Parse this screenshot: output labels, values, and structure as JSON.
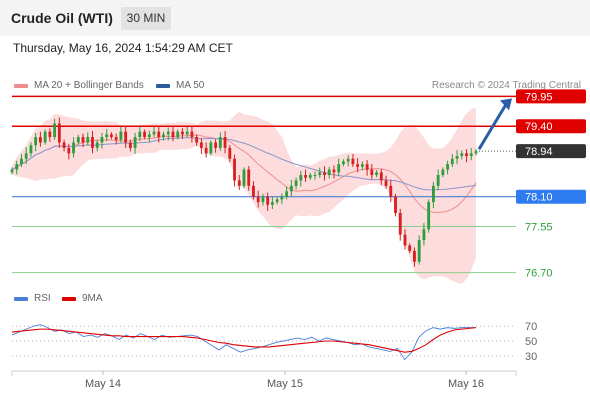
{
  "header": {
    "title": "Crude Oil (WTI)",
    "timeframe": "30 MIN"
  },
  "timestamp": "Thursday, May 16, 2024 1:54:29 AM CET",
  "legend": {
    "ma20": {
      "label": "MA 20 + Bollinger Bands",
      "color": "#f08c8c"
    },
    "ma50": {
      "label": "MA 50",
      "color": "#2e5b9e"
    }
  },
  "copyright": "Research © 2024 Trading Central",
  "rsi_legend": {
    "rsi": {
      "label": "RSI",
      "color": "#4a7fd6"
    },
    "ma9": {
      "label": "9MA",
      "color": "#e00000"
    }
  },
  "chart_data": [
    {
      "type": "candlestick",
      "ylim": [
        76.6,
        80.05
      ],
      "x_labels": [
        "May 14",
        "May 15",
        "May 16"
      ],
      "levels": [
        {
          "value": 79.95,
          "label": "79.95",
          "kind": "resistance"
        },
        {
          "value": 79.4,
          "label": "79.40",
          "kind": "resistance"
        },
        {
          "value": 78.94,
          "label": "78.94",
          "kind": "current"
        },
        {
          "value": 78.1,
          "label": "78.10",
          "kind": "pivot"
        },
        {
          "value": 77.55,
          "label": "77.55",
          "kind": "support"
        },
        {
          "value": 76.7,
          "label": "76.70",
          "kind": "support"
        }
      ],
      "colors": {
        "up": "#2e9e3c",
        "down": "#d92020",
        "band": "#fbd0d0",
        "ma20": "#f08c8c",
        "ma50": "#8a95c9"
      },
      "close_series": [
        78.6,
        78.7,
        78.8,
        78.9,
        79.05,
        79.2,
        79.1,
        79.3,
        79.2,
        79.45,
        79.1,
        79.0,
        78.9,
        79.1,
        79.2,
        79.1,
        79.2,
        79.0,
        79.1,
        79.2,
        79.25,
        79.2,
        79.15,
        79.3,
        79.1,
        79.0,
        79.2,
        79.3,
        79.2,
        79.25,
        79.3,
        79.2,
        79.25,
        79.3,
        79.2,
        79.3,
        79.25,
        79.3,
        79.2,
        79.1,
        79.0,
        78.9,
        79.1,
        79.0,
        79.2,
        79.0,
        78.8,
        78.4,
        78.3,
        78.6,
        78.3,
        78.1,
        78.0,
        78.1,
        77.95,
        78.0,
        78.05,
        78.1,
        78.2,
        78.3,
        78.4,
        78.5,
        78.45,
        78.5,
        78.5,
        78.55,
        78.5,
        78.6,
        78.55,
        78.7,
        78.75,
        78.8,
        78.7,
        78.65,
        78.7,
        78.6,
        78.5,
        78.55,
        78.4,
        78.3,
        78.1,
        77.8,
        77.4,
        77.2,
        77.1,
        76.9,
        77.3,
        77.5,
        78.0,
        78.3,
        78.5,
        78.6,
        78.7,
        78.8,
        78.85,
        78.9,
        78.85,
        78.9,
        78.94
      ]
    },
    {
      "type": "line",
      "title": "RSI",
      "ylim": [
        15,
        85
      ],
      "y_ticks": [
        70,
        50,
        30
      ],
      "series": [
        {
          "name": "RSI",
          "values": [
            58,
            62,
            66,
            70,
            72,
            68,
            63,
            65,
            60,
            62,
            56,
            58,
            55,
            60,
            57,
            52,
            58,
            54,
            60,
            56,
            52,
            58,
            55,
            56,
            57,
            58,
            56,
            50,
            44,
            38,
            45,
            40,
            35,
            38,
            40,
            42,
            45,
            48,
            50,
            52,
            54,
            52,
            55,
            50,
            54,
            52,
            50,
            48,
            45,
            46,
            42,
            40,
            38,
            36,
            40,
            25,
            35,
            55,
            64,
            68,
            66,
            68,
            67,
            68,
            68,
            68
          ]
        },
        {
          "name": "9MA",
          "values": [
            62,
            63,
            64,
            65,
            66,
            66,
            65,
            64,
            63,
            62,
            61,
            60,
            59,
            58,
            57,
            57,
            56,
            56,
            56,
            56,
            56,
            56,
            56,
            56,
            56,
            55,
            54,
            52,
            50,
            48,
            47,
            45,
            44,
            43,
            42,
            42,
            42,
            43,
            44,
            45,
            46,
            47,
            48,
            49,
            50,
            50,
            49,
            48,
            47,
            46,
            45,
            43,
            41,
            39,
            37,
            35,
            36,
            40,
            45,
            52,
            58,
            62,
            65,
            66,
            67,
            68
          ]
        }
      ]
    }
  ]
}
